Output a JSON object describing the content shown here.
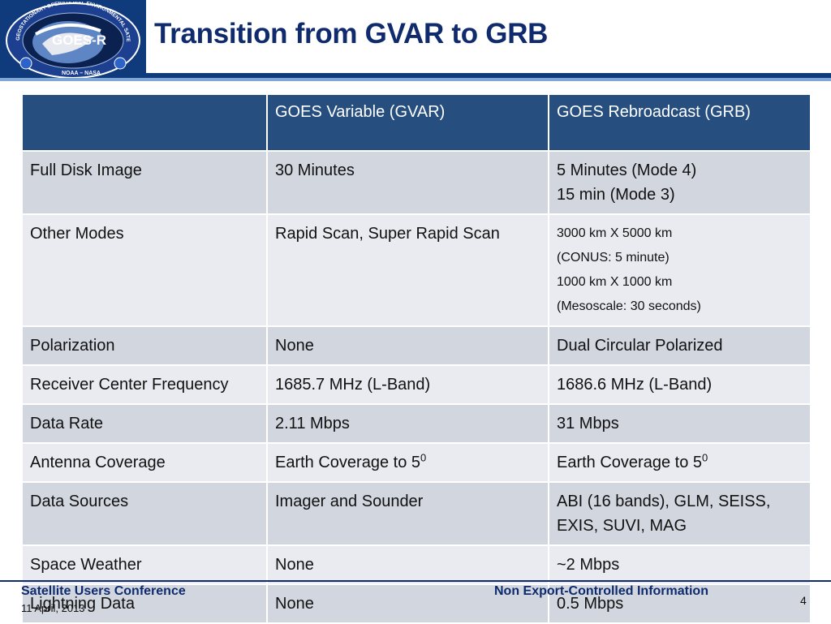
{
  "header": {
    "title": "Transition from GVAR to GRB",
    "logo": {
      "icon": "goes-r-series-seal",
      "text_main": "GOES-R",
      "text_ring": "GEOSTATIONARY OPERATIONAL ENVIRONMENTAL SATELLITE R SERIES",
      "text_bottom": "NOAA – NASA"
    }
  },
  "table": {
    "columns": [
      "",
      "GOES Variable (GVAR)",
      "GOES Rebroadcast (GRB)"
    ],
    "rows": [
      {
        "label": "Full Disk Image",
        "gvar": "30 Minutes",
        "grb": [
          "5 Minutes (Mode 4)",
          "15 min (Mode 3)"
        ]
      },
      {
        "label": "Other Modes",
        "gvar": "Rapid Scan, Super Rapid Scan",
        "grb": [
          "3000 km X 5000 km",
          "(CONUS: 5 minute)",
          "1000 km X 1000 km",
          "(Mesoscale: 30 seconds)"
        ]
      },
      {
        "label": "Polarization",
        "gvar": "None",
        "grb": "Dual Circular Polarized"
      },
      {
        "label": "Receiver Center Frequency",
        "gvar": "1685.7 MHz (L-Band)",
        "grb": "1686.6 MHz (L-Band)"
      },
      {
        "label": "Data Rate",
        "gvar": "2.11 Mbps",
        "grb": "31 Mbps"
      },
      {
        "label": "Antenna Coverage",
        "gvar": "Earth Coverage to 5",
        "gvar_sup": "0",
        "grb": "Earth Coverage to 5",
        "grb_sup": "0"
      },
      {
        "label": "Data Sources",
        "gvar": "Imager and Sounder",
        "grb": [
          "ABI (16 bands), GLM, SEISS,",
          "EXIS, SUVI, MAG"
        ]
      },
      {
        "label": "Space Weather",
        "gvar": "None",
        "grb": "~2 Mbps"
      },
      {
        "label": "Lightning Data",
        "gvar": "None",
        "grb": "0.5 Mbps"
      }
    ]
  },
  "footer": {
    "conference": "Satellite Users Conference",
    "date": "11 April, 2013",
    "classification": "Non Export-Controlled Information",
    "page_number": "4"
  },
  "colors": {
    "header_blue": "#0f3b7c",
    "title_blue": "#0f2b6e",
    "table_header": "#264f80",
    "row_dark": "#d1d6df",
    "row_light": "#e9ebf0"
  }
}
